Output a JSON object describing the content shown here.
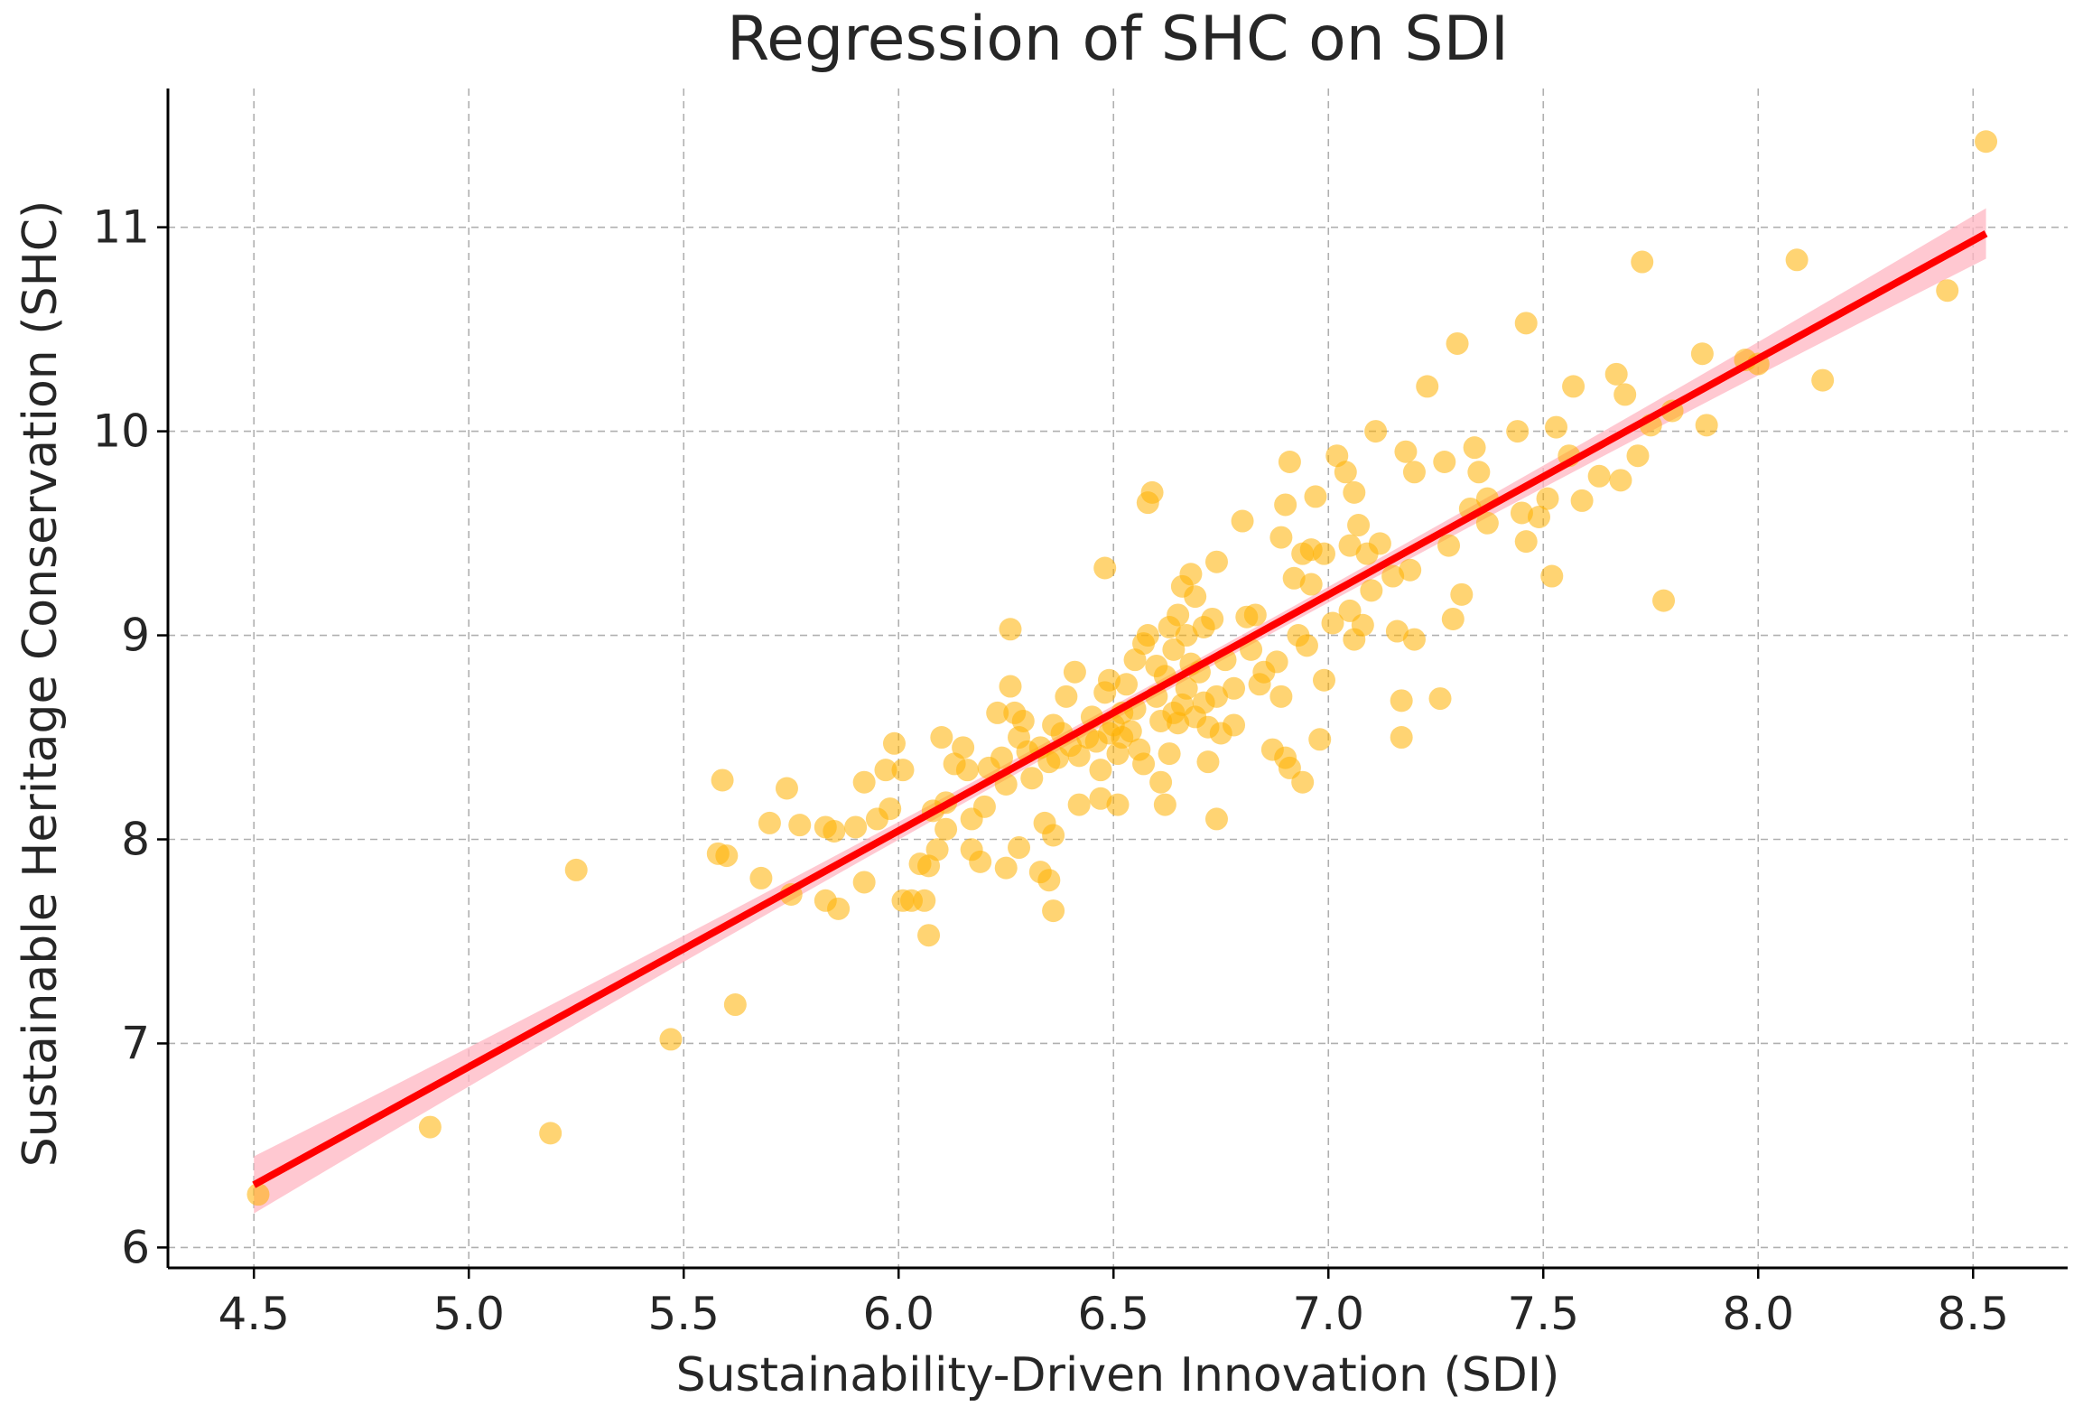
{
  "chart_data": {
    "type": "scatter",
    "title": "Regression of SHC on SDI",
    "xlabel": "Sustainability-Driven Innovation (SDI)",
    "ylabel": "Sustainable Heritage Conservation (SHC)",
    "xlim": [
      4.3,
      8.72
    ],
    "ylim": [
      5.9,
      11.68
    ],
    "grid": true,
    "xticks": [
      4.5,
      5.0,
      5.5,
      6.0,
      6.5,
      7.0,
      7.5,
      8.0,
      8.5
    ],
    "xtick_labels": [
      "4.5",
      "5.0",
      "5.5",
      "6.0",
      "6.5",
      "7.0",
      "7.5",
      "8.0",
      "8.5"
    ],
    "yticks": [
      6,
      7,
      8,
      9,
      10,
      11
    ],
    "ytick_labels": [
      "6",
      "7",
      "8",
      "9",
      "10",
      "11"
    ],
    "colors": {
      "points": "#ffb000",
      "regression_line": "#ff0000",
      "confidence_band": "#ffb6c1",
      "grid": "#b0b0b0",
      "axis": "#000000"
    },
    "regression": {
      "intercept": 1.1,
      "slope": 1.157,
      "x_range": [
        4.5,
        8.53
      ],
      "ci_halfwidth_ends": 0.14,
      "ci_halfwidth_center": 0.035,
      "x_center": 6.6
    },
    "series": [
      {
        "name": "observations",
        "points": [
          [
            4.51,
            6.26
          ],
          [
            4.91,
            6.59
          ],
          [
            5.19,
            6.56
          ],
          [
            5.25,
            7.85
          ],
          [
            5.47,
            7.02
          ],
          [
            5.58,
            7.93
          ],
          [
            5.59,
            8.29
          ],
          [
            5.6,
            7.92
          ],
          [
            5.62,
            7.19
          ],
          [
            5.68,
            7.81
          ],
          [
            5.7,
            8.08
          ],
          [
            5.74,
            8.25
          ],
          [
            5.75,
            7.73
          ],
          [
            5.77,
            8.07
          ],
          [
            5.83,
            8.06
          ],
          [
            5.83,
            7.7
          ],
          [
            5.85,
            8.04
          ],
          [
            5.86,
            7.66
          ],
          [
            5.9,
            8.06
          ],
          [
            5.92,
            7.79
          ],
          [
            5.92,
            8.28
          ],
          [
            5.95,
            8.1
          ],
          [
            5.97,
            8.34
          ],
          [
            5.98,
            8.15
          ],
          [
            5.99,
            8.47
          ],
          [
            6.01,
            8.34
          ],
          [
            6.01,
            7.7
          ],
          [
            6.03,
            7.7
          ],
          [
            6.05,
            7.88
          ],
          [
            6.06,
            7.7
          ],
          [
            6.07,
            7.53
          ],
          [
            6.07,
            7.87
          ],
          [
            6.08,
            8.14
          ],
          [
            6.09,
            7.95
          ],
          [
            6.1,
            8.5
          ],
          [
            6.11,
            8.18
          ],
          [
            6.11,
            8.05
          ],
          [
            6.13,
            8.37
          ],
          [
            6.15,
            8.45
          ],
          [
            6.16,
            8.34
          ],
          [
            6.17,
            7.95
          ],
          [
            6.17,
            8.1
          ],
          [
            6.19,
            7.89
          ],
          [
            6.2,
            8.16
          ],
          [
            6.21,
            8.35
          ],
          [
            6.23,
            8.62
          ],
          [
            6.24,
            8.4
          ],
          [
            6.25,
            8.27
          ],
          [
            6.25,
            7.86
          ],
          [
            6.26,
            8.75
          ],
          [
            6.26,
            9.03
          ],
          [
            6.27,
            8.62
          ],
          [
            6.28,
            8.5
          ],
          [
            6.28,
            7.96
          ],
          [
            6.29,
            8.58
          ],
          [
            6.3,
            8.43
          ],
          [
            6.31,
            8.3
          ],
          [
            6.33,
            8.45
          ],
          [
            6.33,
            7.84
          ],
          [
            6.34,
            8.08
          ],
          [
            6.35,
            8.38
          ],
          [
            6.35,
            7.8
          ],
          [
            6.36,
            8.56
          ],
          [
            6.36,
            8.02
          ],
          [
            6.36,
            7.65
          ],
          [
            6.37,
            8.4
          ],
          [
            6.38,
            8.52
          ],
          [
            6.39,
            8.7
          ],
          [
            6.4,
            8.46
          ],
          [
            6.41,
            8.82
          ],
          [
            6.42,
            8.41
          ],
          [
            6.42,
            8.17
          ],
          [
            6.44,
            8.5
          ],
          [
            6.45,
            8.6
          ],
          [
            6.46,
            8.48
          ],
          [
            6.47,
            8.34
          ],
          [
            6.47,
            8.2
          ],
          [
            6.48,
            9.33
          ],
          [
            6.48,
            8.72
          ],
          [
            6.49,
            8.78
          ],
          [
            6.49,
            8.52
          ],
          [
            6.5,
            8.56
          ],
          [
            6.51,
            8.17
          ],
          [
            6.51,
            8.42
          ],
          [
            6.52,
            8.62
          ],
          [
            6.52,
            8.5
          ],
          [
            6.53,
            8.76
          ],
          [
            6.54,
            8.53
          ],
          [
            6.55,
            8.88
          ],
          [
            6.55,
            8.64
          ],
          [
            6.56,
            8.44
          ],
          [
            6.57,
            8.37
          ],
          [
            6.57,
            8.96
          ],
          [
            6.58,
            9.0
          ],
          [
            6.58,
            9.65
          ],
          [
            6.59,
            9.7
          ],
          [
            6.6,
            8.7
          ],
          [
            6.6,
            8.85
          ],
          [
            6.61,
            8.58
          ],
          [
            6.61,
            8.28
          ],
          [
            6.62,
            8.17
          ],
          [
            6.62,
            8.8
          ],
          [
            6.63,
            9.04
          ],
          [
            6.63,
            8.42
          ],
          [
            6.64,
            8.62
          ],
          [
            6.64,
            8.93
          ],
          [
            6.65,
            8.57
          ],
          [
            6.65,
            9.1
          ],
          [
            6.66,
            8.66
          ],
          [
            6.66,
            9.24
          ],
          [
            6.67,
            8.74
          ],
          [
            6.67,
            9.0
          ],
          [
            6.68,
            9.3
          ],
          [
            6.68,
            8.86
          ],
          [
            6.69,
            9.19
          ],
          [
            6.69,
            8.6
          ],
          [
            6.7,
            8.82
          ],
          [
            6.71,
            9.04
          ],
          [
            6.71,
            8.67
          ],
          [
            6.72,
            8.38
          ],
          [
            6.72,
            8.55
          ],
          [
            6.73,
            9.08
          ],
          [
            6.74,
            8.7
          ],
          [
            6.74,
            9.36
          ],
          [
            6.74,
            8.1
          ],
          [
            6.75,
            8.52
          ],
          [
            6.76,
            8.88
          ],
          [
            6.78,
            8.56
          ],
          [
            6.78,
            8.74
          ],
          [
            6.8,
            9.56
          ],
          [
            6.81,
            9.09
          ],
          [
            6.82,
            8.93
          ],
          [
            6.83,
            9.1
          ],
          [
            6.84,
            8.76
          ],
          [
            6.85,
            8.82
          ],
          [
            6.87,
            8.44
          ],
          [
            6.88,
            8.87
          ],
          [
            6.89,
            8.7
          ],
          [
            6.89,
            9.48
          ],
          [
            6.9,
            8.4
          ],
          [
            6.9,
            9.64
          ],
          [
            6.91,
            8.35
          ],
          [
            6.91,
            9.85
          ],
          [
            6.92,
            9.28
          ],
          [
            6.93,
            9.0
          ],
          [
            6.94,
            8.28
          ],
          [
            6.94,
            9.4
          ],
          [
            6.95,
            8.95
          ],
          [
            6.96,
            9.25
          ],
          [
            6.96,
            9.42
          ],
          [
            6.97,
            9.68
          ],
          [
            6.98,
            8.49
          ],
          [
            6.99,
            8.78
          ],
          [
            6.99,
            9.4
          ],
          [
            7.01,
            9.06
          ],
          [
            7.02,
            9.88
          ],
          [
            7.04,
            9.8
          ],
          [
            7.05,
            9.12
          ],
          [
            7.05,
            9.44
          ],
          [
            7.06,
            8.98
          ],
          [
            7.06,
            9.7
          ],
          [
            7.07,
            9.54
          ],
          [
            7.08,
            9.05
          ],
          [
            7.09,
            9.4
          ],
          [
            7.1,
            9.22
          ],
          [
            7.11,
            10.0
          ],
          [
            7.12,
            9.45
          ],
          [
            7.15,
            9.29
          ],
          [
            7.16,
            9.02
          ],
          [
            7.17,
            8.5
          ],
          [
            7.17,
            8.68
          ],
          [
            7.18,
            9.9
          ],
          [
            7.19,
            9.32
          ],
          [
            7.2,
            8.98
          ],
          [
            7.2,
            9.8
          ],
          [
            7.23,
            10.22
          ],
          [
            7.26,
            8.69
          ],
          [
            7.27,
            9.85
          ],
          [
            7.28,
            9.44
          ],
          [
            7.29,
            9.08
          ],
          [
            7.3,
            10.43
          ],
          [
            7.31,
            9.2
          ],
          [
            7.33,
            9.62
          ],
          [
            7.34,
            9.92
          ],
          [
            7.35,
            9.8
          ],
          [
            7.37,
            9.55
          ],
          [
            7.37,
            9.67
          ],
          [
            7.44,
            10.0
          ],
          [
            7.45,
            9.6
          ],
          [
            7.46,
            9.46
          ],
          [
            7.46,
            10.53
          ],
          [
            7.49,
            9.58
          ],
          [
            7.51,
            9.67
          ],
          [
            7.52,
            9.29
          ],
          [
            7.53,
            10.02
          ],
          [
            7.56,
            9.88
          ],
          [
            7.57,
            10.22
          ],
          [
            7.59,
            9.66
          ],
          [
            7.63,
            9.78
          ],
          [
            7.67,
            10.28
          ],
          [
            7.68,
            9.76
          ],
          [
            7.69,
            10.18
          ],
          [
            7.72,
            9.88
          ],
          [
            7.73,
            10.83
          ],
          [
            7.75,
            10.03
          ],
          [
            7.78,
            9.17
          ],
          [
            7.8,
            10.1
          ],
          [
            7.87,
            10.38
          ],
          [
            7.88,
            10.03
          ],
          [
            7.97,
            10.35
          ],
          [
            8.0,
            10.33
          ],
          [
            8.09,
            10.84
          ],
          [
            8.15,
            10.25
          ],
          [
            8.44,
            10.69
          ],
          [
            8.53,
            11.42
          ]
        ]
      }
    ]
  }
}
